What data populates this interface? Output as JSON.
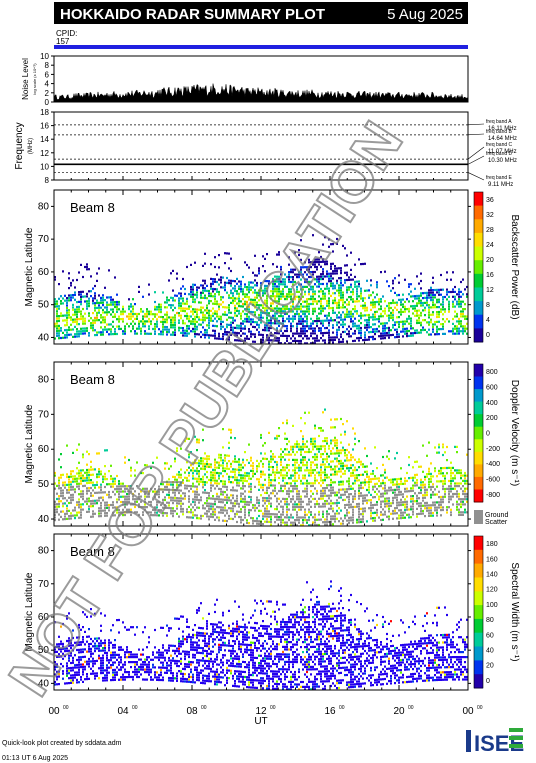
{
  "header": {
    "title": "HOKKAIDO RADAR SUMMARY PLOT",
    "date": "5 Aug 2025",
    "cpid_label": "CPID:",
    "cpid_value": "157",
    "bar_color": "#2020e0"
  },
  "noise_panel": {
    "ylabel": "Noise Level",
    "ylabel_small": "log scale (x 10^?)",
    "yticks": [
      "10",
      "8",
      "6",
      "4",
      "2",
      "0"
    ],
    "ylim": [
      0,
      10
    ]
  },
  "freq_panel": {
    "ylabel": "Frequency",
    "ylabel_unit": "(MHz)",
    "yticks": [
      "18",
      "16",
      "14",
      "12",
      "10",
      "8"
    ],
    "ylim": [
      8,
      18
    ],
    "bands": [
      {
        "label": "freq band A",
        "value": "16.11 MHz",
        "mhz": 16.11
      },
      {
        "label": "freq band B",
        "value": "14.64 MHz",
        "mhz": 14.64
      },
      {
        "label": "freq band C",
        "value": "11.07 MHz",
        "mhz": 11.07
      },
      {
        "label": "freq band D",
        "value": "10.30 MHz",
        "mhz": 10.3
      },
      {
        "label": "freq band E",
        "value": "9.11 MHz",
        "mhz": 9.11
      }
    ]
  },
  "panels": [
    {
      "beam": "Beam 8",
      "ylabel": "Magnetic Latitude",
      "yticks": [
        "80",
        "70",
        "60",
        "50",
        "40"
      ],
      "cbar_label": "Backscatter Power (dB)",
      "cbar_ticks": [
        "36",
        "32",
        "28",
        "24",
        "20",
        "16",
        "12",
        "8",
        "4",
        "0"
      ],
      "cbar_colors": [
        "#ff0000",
        "#ff6a00",
        "#ffaa00",
        "#ffdd00",
        "#ccff00",
        "#66ee00",
        "#00cc33",
        "#00cc99",
        "#0099cc",
        "#0033ee",
        "#1a0099"
      ]
    },
    {
      "beam": "Beam 8",
      "ylabel": "Magnetic Latitude",
      "yticks": [
        "80",
        "70",
        "60",
        "50",
        "40"
      ],
      "cbar_label": "Doppler Velocity (m s⁻¹)",
      "cbar_ticks": [
        "800",
        "600",
        "400",
        "200",
        "0",
        "-200",
        "-400",
        "-600",
        "-800"
      ],
      "cbar_colors": [
        "#2200aa",
        "#0033ee",
        "#0099cc",
        "#00cc99",
        "#00cc33",
        "#66ee00",
        "#ccff00",
        "#ffdd00",
        "#ffaa00",
        "#ff6a00",
        "#ff0000"
      ],
      "ground_label": "Ground",
      "ground_label2": "Scatter"
    },
    {
      "beam": "Beam 8",
      "ylabel": "Magnetic Latitude",
      "yticks": [
        "80",
        "70",
        "60",
        "50",
        "40"
      ],
      "cbar_label": "Spectral Width (m s⁻¹)",
      "cbar_ticks": [
        "180",
        "160",
        "140",
        "120",
        "100",
        "80",
        "60",
        "40",
        "20",
        "0"
      ],
      "cbar_colors": [
        "#ff0000",
        "#ff6a00",
        "#ffaa00",
        "#ffdd00",
        "#ccff00",
        "#66ee00",
        "#00cc33",
        "#00cc99",
        "#0099cc",
        "#0033ee",
        "#2200aa"
      ]
    }
  ],
  "xaxis": {
    "ticks": [
      "00",
      "04",
      "08",
      "12",
      "16",
      "20",
      "00"
    ],
    "tick_sup": "00",
    "label": "UT"
  },
  "watermark": "NOT FOR PUBLICATION",
  "footer": {
    "line1": "Quick-look plot created by sddata.adm",
    "line2": "01:13 UT  6 Aug 2025",
    "logo_text": "ISEE"
  },
  "chart_data": [
    {
      "type": "area",
      "title": "Noise Level",
      "ylim": [
        0,
        10
      ],
      "x_range_ut_hours": [
        0,
        24
      ],
      "description_series": "noise level vs UT",
      "values_profile": [
        1.5,
        1.8,
        2.0,
        2.2,
        2.4,
        2.6,
        3.0,
        3.3,
        3.6,
        3.8,
        3.4,
        3.0,
        2.8,
        2.6,
        2.5,
        2.4,
        2.4,
        2.2,
        2.1,
        2.0,
        2.0,
        2.0,
        1.8,
        1.6
      ]
    },
    {
      "type": "line",
      "title": "Frequency",
      "ylim": [
        8,
        18
      ],
      "series": [
        {
          "name": "freq band",
          "values": [
            10.3,
            10.3,
            10.3,
            10.3,
            10.3,
            10.3,
            10.3
          ]
        }
      ]
    },
    {
      "type": "heatmap",
      "title": "Backscatter Power (dB)",
      "xlim": [
        0,
        24
      ],
      "ylim": [
        38,
        85
      ],
      "zlim": [
        0,
        36
      ]
    },
    {
      "type": "heatmap",
      "title": "Doppler Velocity",
      "xlim": [
        0,
        24
      ],
      "ylim": [
        38,
        85
      ],
      "zlim": [
        -800,
        800
      ]
    },
    {
      "type": "heatmap",
      "title": "Spectral Width",
      "xlim": [
        0,
        24
      ],
      "ylim": [
        38,
        85
      ],
      "zlim": [
        0,
        180
      ]
    }
  ]
}
